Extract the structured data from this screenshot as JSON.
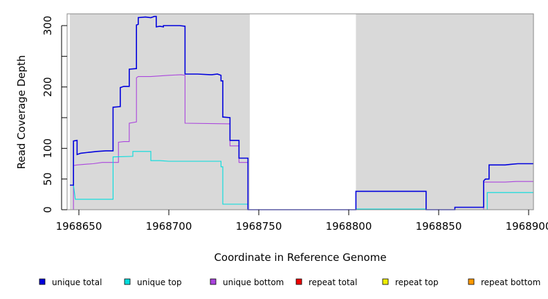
{
  "chart_data": {
    "type": "line",
    "title": "",
    "xlabel": "Coordinate in Reference Genome",
    "ylabel": "Read Coverage Depth",
    "xlim": [
      1968645,
      1968903
    ],
    "ylim": [
      0,
      320
    ],
    "x_ticks": [
      1968650,
      1968700,
      1968750,
      1968800,
      1968850,
      1968900
    ],
    "x_tick_labels": [
      "1968650",
      "1968700",
      "1968750",
      "1968800",
      "1968850",
      "1968900"
    ],
    "y_ticks": [
      0,
      50,
      100,
      200,
      300
    ],
    "y_tick_labels": [
      "0",
      "50",
      "100",
      "200",
      "300"
    ],
    "y_minor_ticks": [
      150,
      250
    ],
    "shaded_regions": [
      [
        1968645,
        1968745
      ],
      [
        1968804,
        1968903
      ]
    ],
    "shade_color": "#d9d9d9",
    "grid": false,
    "legend_position": "bottom",
    "series": [
      {
        "name": "unique total",
        "color": "#0000dd",
        "points": [
          [
            1968645,
            40
          ],
          [
            1968647,
            40
          ],
          [
            1968647,
            112
          ],
          [
            1968649,
            113
          ],
          [
            1968649,
            90
          ],
          [
            1968651,
            92
          ],
          [
            1968654,
            93
          ],
          [
            1968657,
            94
          ],
          [
            1968660,
            95
          ],
          [
            1968665,
            96
          ],
          [
            1968669,
            96
          ],
          [
            1968669,
            167
          ],
          [
            1968673,
            168
          ],
          [
            1968673,
            199
          ],
          [
            1968675,
            201
          ],
          [
            1968678,
            201
          ],
          [
            1968678,
            229
          ],
          [
            1968682,
            230
          ],
          [
            1968682,
            301
          ],
          [
            1968683,
            302
          ],
          [
            1968683,
            313
          ],
          [
            1968687,
            314
          ],
          [
            1968690,
            313
          ],
          [
            1968692,
            315
          ],
          [
            1968693,
            315
          ],
          [
            1968693,
            298
          ],
          [
            1968695,
            299
          ],
          [
            1968697,
            298
          ],
          [
            1968697,
            300
          ],
          [
            1968706,
            300
          ],
          [
            1968709,
            299
          ],
          [
            1968709,
            221
          ],
          [
            1968716,
            221
          ],
          [
            1968723,
            220
          ],
          [
            1968724,
            220
          ],
          [
            1968727,
            221
          ],
          [
            1968729,
            219
          ],
          [
            1968729,
            210
          ],
          [
            1968730,
            210
          ],
          [
            1968730,
            151
          ],
          [
            1968734,
            150
          ],
          [
            1968734,
            113
          ],
          [
            1968739,
            113
          ],
          [
            1968739,
            84
          ],
          [
            1968744,
            84
          ],
          [
            1968744,
            0
          ],
          [
            1968804,
            0
          ],
          [
            1968804,
            30
          ],
          [
            1968843,
            30
          ],
          [
            1968843,
            0
          ],
          [
            1968859,
            0
          ],
          [
            1968859,
            4
          ],
          [
            1968875,
            4
          ],
          [
            1968875,
            47
          ],
          [
            1968876,
            50
          ],
          [
            1968878,
            50
          ],
          [
            1968878,
            73
          ],
          [
            1968887,
            73
          ],
          [
            1968890,
            74
          ],
          [
            1968894,
            75
          ],
          [
            1968903,
            75
          ]
        ]
      },
      {
        "name": "unique top",
        "color": "#00dddd",
        "points": [
          [
            1968645,
            40
          ],
          [
            1968647,
            40
          ],
          [
            1968648,
            17
          ],
          [
            1968669,
            17
          ],
          [
            1968669,
            86
          ],
          [
            1968680,
            87
          ],
          [
            1968680,
            95
          ],
          [
            1968690,
            95
          ],
          [
            1968690,
            80
          ],
          [
            1968695,
            80
          ],
          [
            1968700,
            79
          ],
          [
            1968729,
            79
          ],
          [
            1968729,
            70
          ],
          [
            1968730,
            70
          ],
          [
            1968730,
            9
          ],
          [
            1968744,
            9
          ],
          [
            1968744,
            0
          ],
          [
            1968804,
            0
          ],
          [
            1968804,
            1
          ],
          [
            1968843,
            1
          ],
          [
            1968843,
            0
          ],
          [
            1968877,
            0
          ],
          [
            1968877,
            28
          ],
          [
            1968903,
            28
          ]
        ]
      },
      {
        "name": "unique bottom",
        "color": "#aa44dd",
        "points": [
          [
            1968647,
            0
          ],
          [
            1968647,
            72
          ],
          [
            1968649,
            73
          ],
          [
            1968653,
            74
          ],
          [
            1968658,
            75
          ],
          [
            1968663,
            77
          ],
          [
            1968672,
            77
          ],
          [
            1968672,
            110
          ],
          [
            1968675,
            111
          ],
          [
            1968678,
            111
          ],
          [
            1968678,
            141
          ],
          [
            1968682,
            143
          ],
          [
            1968682,
            215
          ],
          [
            1968683,
            217
          ],
          [
            1968690,
            217
          ],
          [
            1968695,
            218
          ],
          [
            1968700,
            219
          ],
          [
            1968707,
            220
          ],
          [
            1968709,
            219
          ],
          [
            1968709,
            141
          ],
          [
            1968734,
            140
          ],
          [
            1968734,
            104
          ],
          [
            1968739,
            104
          ],
          [
            1968739,
            77
          ],
          [
            1968744,
            77
          ],
          [
            1968744,
            0
          ],
          [
            1968804,
            0
          ],
          [
            1968804,
            1
          ],
          [
            1968843,
            1
          ],
          [
            1968843,
            0
          ],
          [
            1968875,
            0
          ],
          [
            1968875,
            45
          ],
          [
            1968887,
            45
          ],
          [
            1968893,
            46
          ],
          [
            1968903,
            46
          ]
        ]
      },
      {
        "name": "repeat total",
        "color": "#ee0000",
        "points": [
          [
            1968645,
            0
          ],
          [
            1968903,
            0
          ]
        ]
      },
      {
        "name": "repeat top",
        "color": "#eeee00",
        "points": [
          [
            1968645,
            0
          ],
          [
            1968903,
            0
          ]
        ]
      },
      {
        "name": "repeat bottom",
        "color": "#ff9900",
        "points": [
          [
            1968645,
            0
          ],
          [
            1968903,
            0
          ]
        ]
      }
    ]
  }
}
